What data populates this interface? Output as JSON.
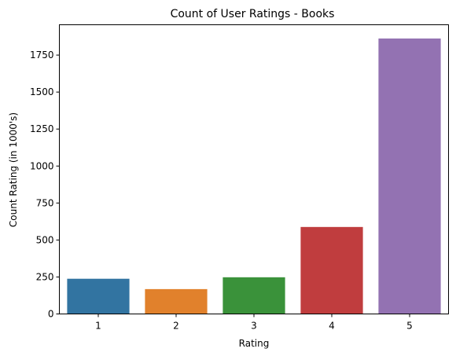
{
  "chart_data": {
    "type": "bar",
    "title": "Count of User Ratings - Books",
    "xlabel": "Rating",
    "ylabel": "Count Rating (in 1000's)",
    "categories": [
      "1",
      "2",
      "3",
      "4",
      "5"
    ],
    "values": [
      238,
      168,
      248,
      588,
      1862
    ],
    "colors": [
      "#3274a1",
      "#e1812c",
      "#3a923a",
      "#c03d3e",
      "#9372b2"
    ],
    "ylim": [
      0,
      1955
    ],
    "yticks": [
      0,
      250,
      500,
      750,
      1000,
      1250,
      1500,
      1750
    ],
    "grid": false,
    "legend": "none"
  }
}
